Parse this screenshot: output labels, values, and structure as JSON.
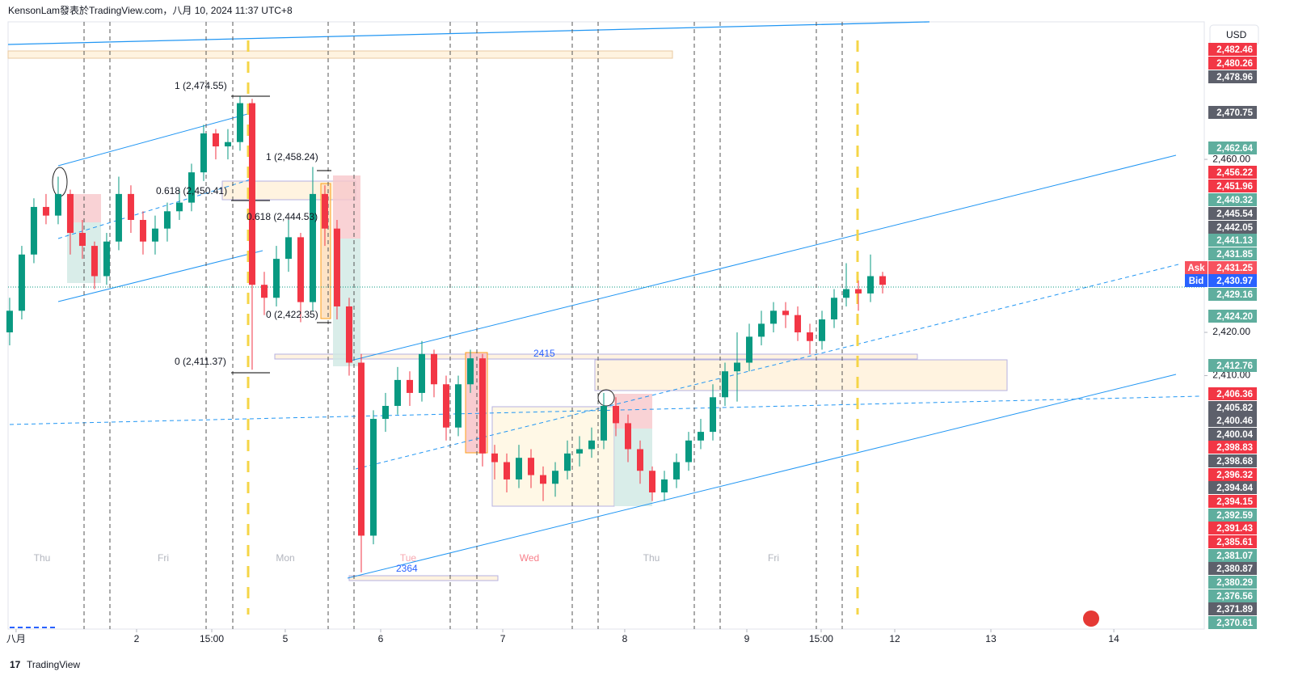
{
  "header": {
    "text": "KensonLam發表於TradingView.com，八月 10, 2024 11:37 UTC+8",
    "currency": "USD"
  },
  "footer": {
    "brand": "TradingView"
  },
  "chart_data": {
    "type": "candlestick",
    "up_color": "#089981",
    "down_color": "#f23645",
    "x": [
      0,
      1,
      2,
      3,
      4,
      5,
      6,
      7,
      8,
      9,
      10,
      11,
      12,
      13,
      14,
      15,
      16,
      17,
      18,
      19,
      20,
      21,
      22,
      23,
      24,
      25,
      26,
      27,
      28,
      29,
      30,
      31,
      32,
      33,
      34,
      35,
      36,
      37,
      38,
      39,
      40,
      41,
      42,
      43,
      44,
      45,
      46,
      47,
      48,
      49,
      50,
      51,
      52,
      53,
      54,
      55,
      56,
      57,
      58,
      59,
      60,
      61,
      62,
      63,
      64,
      65,
      66,
      67,
      68,
      69,
      70,
      71,
      72
    ],
    "open": [
      2420,
      2425,
      2438,
      2449,
      2447,
      2452,
      2443,
      2440,
      2433,
      2441,
      2452,
      2446,
      2441,
      2444,
      2448,
      2450,
      2457,
      2466,
      2463,
      2464,
      2473,
      2431,
      2428,
      2437,
      2442,
      2427,
      2452,
      2444,
      2426,
      2413,
      2373,
      2400,
      2403,
      2409,
      2406,
      2415,
      2408,
      2398,
      2408,
      2414,
      2392,
      2390,
      2386,
      2391,
      2387,
      2385,
      2388,
      2392,
      2393,
      2395,
      2403,
      2399,
      2393,
      2388,
      2383,
      2386,
      2390,
      2395,
      2397,
      2405,
      2411,
      2413,
      2419,
      2422,
      2425,
      2424,
      2420,
      2418,
      2423,
      2428,
      2430,
      2429,
      2433
    ],
    "high": [
      2428,
      2440,
      2451,
      2452,
      2456,
      2453,
      2446,
      2441,
      2443,
      2456,
      2454,
      2448,
      2447,
      2450,
      2453,
      2459,
      2468,
      2467,
      2467,
      2474.55,
      2474,
      2434,
      2440,
      2446,
      2443,
      2458.24,
      2454,
      2446,
      2428,
      2415,
      2402,
      2406,
      2412,
      2411,
      2418,
      2416,
      2410,
      2410,
      2416,
      2415,
      2394,
      2392,
      2394,
      2393,
      2389,
      2390,
      2395,
      2396,
      2398,
      2406,
      2405,
      2401,
      2395,
      2389,
      2388,
      2392,
      2397,
      2400,
      2408,
      2413,
      2420,
      2422,
      2425,
      2427,
      2427,
      2426,
      2422,
      2425,
      2430,
      2436,
      2432,
      2438,
      2434
    ],
    "low": [
      2417,
      2423,
      2436,
      2445,
      2445,
      2438,
      2437,
      2430,
      2431,
      2439,
      2443,
      2438,
      2438,
      2441,
      2446,
      2448,
      2455,
      2460,
      2460,
      2462,
      2411.37,
      2424,
      2426,
      2434,
      2422.35,
      2425,
      2440,
      2423,
      2410,
      2364.5,
      2371,
      2397,
      2401,
      2403,
      2404,
      2405,
      2395,
      2396,
      2406,
      2389,
      2386,
      2383,
      2384,
      2384,
      2381,
      2382,
      2386,
      2389,
      2391,
      2393,
      2396,
      2390,
      2385,
      2381,
      2381,
      2384,
      2388,
      2393,
      2395,
      2403,
      2404,
      2411,
      2417,
      2420,
      2421,
      2418,
      2415,
      2416,
      2421,
      2426,
      2425,
      2427,
      2429
    ],
    "close": [
      2425,
      2438,
      2449,
      2447,
      2452,
      2443,
      2440,
      2433,
      2441,
      2452,
      2446,
      2441,
      2444,
      2448,
      2450,
      2457,
      2466,
      2463,
      2464,
      2473,
      2431,
      2428,
      2437,
      2442,
      2427,
      2452,
      2444,
      2426,
      2413,
      2373,
      2400,
      2403,
      2409,
      2406,
      2415,
      2408,
      2398,
      2408,
      2414,
      2392,
      2390,
      2386,
      2391,
      2387,
      2385,
      2388,
      2392,
      2393,
      2395,
      2403,
      2399,
      2393,
      2388,
      2383,
      2386,
      2390,
      2395,
      2397,
      2405,
      2411,
      2413,
      2419,
      2422,
      2425,
      2424,
      2420,
      2418,
      2423,
      2428,
      2430,
      2429,
      2433,
      2431
    ],
    "xlim": [
      -0.13,
      98.53
    ],
    "xticks": [
      {
        "value": 0.53,
        "label": "八月"
      },
      {
        "value": 10.47,
        "label": "2"
      },
      {
        "value": 16.67,
        "label": "15:00"
      },
      {
        "value": 22.73,
        "label": "5"
      },
      {
        "value": 30.6,
        "label": "6"
      },
      {
        "value": 40.67,
        "label": "7"
      },
      {
        "value": 50.73,
        "label": "8"
      },
      {
        "value": 60.8,
        "label": "9"
      },
      {
        "value": 66.93,
        "label": "15:00"
      },
      {
        "value": 73,
        "label": "12"
      },
      {
        "value": 80.93,
        "label": "13"
      },
      {
        "value": 91.07,
        "label": "14"
      }
    ],
    "ylim": [
      2351.4,
      2491.8
    ],
    "yticks": [
      {
        "value": 2460,
        "label": "2,460.00"
      },
      {
        "value": 2420,
        "label": "2,420.00"
      },
      {
        "value": 2410,
        "label": "2,410.00"
      }
    ],
    "price_labels": [
      {
        "label": "2,482.46",
        "color": "#f23645"
      },
      {
        "label": "2,480.26",
        "color": "#f23645"
      },
      {
        "label": "2,478.96",
        "color": "#5d606b"
      },
      {
        "label": "2,470.75",
        "color": "#5d606b"
      },
      {
        "label": "2,462.64",
        "color": "#5fae9e"
      },
      {
        "label": "2,456.22",
        "color": "#f23645"
      },
      {
        "label": "2,451.96",
        "color": "#f23645"
      },
      {
        "label": "2,449.32",
        "color": "#5fae9e"
      },
      {
        "label": "2,445.54",
        "color": "#5d606b"
      },
      {
        "label": "2,442.05",
        "color": "#5d606b"
      },
      {
        "label": "2,441.13",
        "color": "#5fae9e"
      },
      {
        "label": "2,431.85",
        "color": "#5fae9e"
      },
      {
        "label": "2,431.25",
        "color": "#f7525f",
        "tag": "Ask"
      },
      {
        "label": "2,430.97",
        "color": "#2962ff",
        "tag": "Bid"
      },
      {
        "label": "2,429.16",
        "color": "#5fae9e"
      },
      {
        "label": "2,424.20",
        "color": "#5fae9e"
      },
      {
        "label": "2,412.76",
        "color": "#5fae9e"
      },
      {
        "label": "2,406.36",
        "color": "#f23645"
      },
      {
        "label": "2,405.82",
        "color": "#5d606b"
      },
      {
        "label": "2,400.46",
        "color": "#5d606b"
      },
      {
        "label": "2,400.04",
        "color": "#5d606b"
      },
      {
        "label": "2,398.83",
        "color": "#f23645"
      },
      {
        "label": "2,398.68",
        "color": "#5d606b"
      },
      {
        "label": "2,396.32",
        "color": "#f23645"
      },
      {
        "label": "2,394.84",
        "color": "#5d606b"
      },
      {
        "label": "2,394.15",
        "color": "#f23645"
      },
      {
        "label": "2,392.59",
        "color": "#5fae9e"
      },
      {
        "label": "2,391.43",
        "color": "#f23645"
      },
      {
        "label": "2,385.61",
        "color": "#f23645"
      },
      {
        "label": "2,381.07",
        "color": "#5fae9e"
      },
      {
        "label": "2,380.87",
        "color": "#5d606b"
      },
      {
        "label": "2,380.29",
        "color": "#5fae9e"
      },
      {
        "label": "2,376.56",
        "color": "#5fae9e"
      },
      {
        "label": "2,371.89",
        "color": "#5d606b"
      },
      {
        "label": "2,370.61",
        "color": "#5fae9e"
      }
    ],
    "fib_labels": [
      "1 (2,474.55)",
      "0.618 (2,450.41)",
      "0 (2,411.37)",
      "1 (2,458.24)",
      "0.618 (2,444.53)",
      "0 (2,422.35)"
    ],
    "annotations": [
      "2415",
      "2364"
    ],
    "day_labels": [
      "Thu",
      "Fri",
      "Mon",
      "Tue",
      "Wed",
      "Thu",
      "Fri"
    ]
  }
}
